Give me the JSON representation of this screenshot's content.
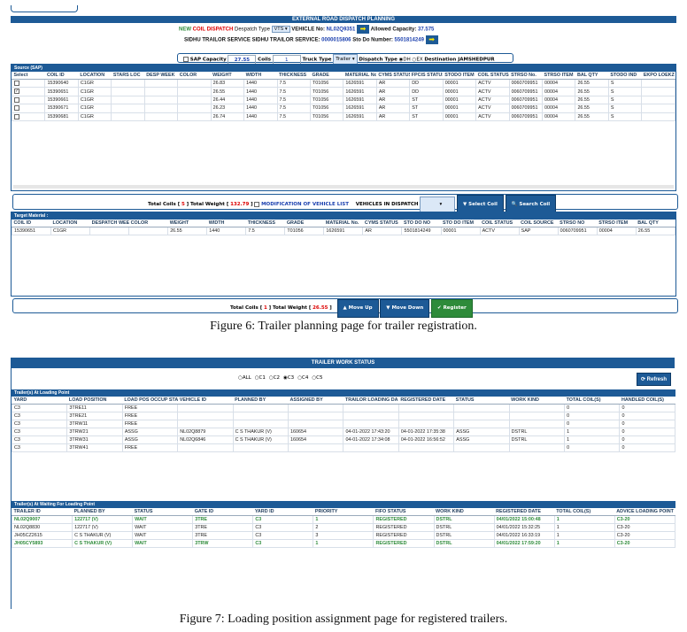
{
  "fig6": {
    "title": "EXTERNAL ROAD DISPATCH PLANNING",
    "new_label": "NEW",
    "coil_dispatch_label": "COIL DISPATCH",
    "despatch_type_label": "Despatch Type",
    "despatch_type_value": "VTS",
    "vehicle_no_label": "VEHICLE No:",
    "vehicle_no_value": "NL02Q9351",
    "allowed_capacity_label": "Allowed Capacity:",
    "allowed_capacity_value": "37.575",
    "service_label": "SIDHU TRAILOR SERVICE SIDHU TRAILOR SERVICE:",
    "service_value": "0000015806",
    "sto_do_label": "Sto Do Number:",
    "sto_do_value": "5501814249",
    "sap_capacity_label": "SAP Capacity",
    "sap_capacity_value": "27.55",
    "coils_label": "Coils",
    "coils_value": "1",
    "truck_type_label": "Truck Type",
    "truck_type_value": "Trailer",
    "dispatch_type_label": "Dispatch Type",
    "dh_label": "DH",
    "ex_label": "EX",
    "destination_label": "Destination JAMSHEDPUR",
    "source_label": "Source (SAP)",
    "source_columns": [
      "Select",
      "COIL ID",
      "LOCATION",
      "STARS LOC",
      "DESP WEEK",
      "COLOR",
      "WEIGHT",
      "WIDTH",
      "THICKNESS",
      "GRADE",
      "MATERIAL No.",
      "CYMS STATUS",
      "FPCIS STATUS",
      "STODO ITEM",
      "COIL STATUS",
      "STRSO No.",
      "STRSO ITEM",
      "BAL QTY",
      "STODO IND",
      "EKPO LOEKZ"
    ],
    "source_rows": [
      {
        "checked": "",
        "cells": [
          "15390640",
          "C1GR",
          "",
          "",
          "",
          "26.83",
          "1440",
          "7.5",
          "T01056",
          "1626591",
          "AR",
          "DD",
          "00001",
          "ACTV",
          "0060709951",
          "00004",
          "26.55",
          "S",
          ""
        ]
      },
      {
        "checked": "✓",
        "cells": [
          "15390651",
          "C1GR",
          "",
          "",
          "",
          "26.55",
          "1440",
          "7.5",
          "T01056",
          "1626591",
          "AR",
          "DD",
          "00001",
          "ACTV",
          "0060709951",
          "00004",
          "26.55",
          "S",
          ""
        ]
      },
      {
        "checked": "",
        "cells": [
          "15390661",
          "C1GR",
          "",
          "",
          "",
          "26.44",
          "1440",
          "7.5",
          "T01056",
          "1626591",
          "AR",
          "ST",
          "00001",
          "ACTV",
          "0060709951",
          "00004",
          "26.55",
          "S",
          ""
        ]
      },
      {
        "checked": "",
        "cells": [
          "15390671",
          "C1GR",
          "",
          "",
          "",
          "26.23",
          "1440",
          "7.5",
          "T01056",
          "1626591",
          "AR",
          "ST",
          "00001",
          "ACTV",
          "0060709951",
          "00004",
          "26.55",
          "S",
          ""
        ]
      },
      {
        "checked": "",
        "cells": [
          "15390681",
          "C1GR",
          "",
          "",
          "",
          "26.74",
          "1440",
          "7.5",
          "T01056",
          "1626591",
          "AR",
          "ST",
          "00001",
          "ACTV",
          "0060709951",
          "00004",
          "26.55",
          "S",
          ""
        ]
      }
    ],
    "total_coils_label": "Total Coils [",
    "total_coils_value": "5",
    "total_weight_label": "] Total Weight [",
    "total_weight_value": "132.79",
    "close_bracket": "]",
    "modification_label": "MODIFICATION OF VEHICLE LIST",
    "vehicles_label": "VEHICLES IN DISPATCH",
    "select_coil_btn": "Select Coil",
    "search_coil_btn": "Search Coil",
    "target_label": "Target Material :",
    "target_columns": [
      "COIL ID",
      "LOCATION",
      "DESPATCH WEEK",
      "COLOR",
      "WEIGHT",
      "WIDTH",
      "THICKNESS",
      "GRADE",
      "MATERIAL No.",
      "CYMS STATUS",
      "STO DO NO",
      "STO DO ITEM",
      "COIL STATUS",
      "COIL SOURCE",
      "STRSO NO",
      "STRSO ITEM",
      "BAL QTY"
    ],
    "target_rows": [
      [
        "15390651",
        "C1GR",
        "",
        "",
        "26.55",
        "1440",
        "7.5",
        "T01056",
        "1626591",
        "AR",
        "5501814249",
        "00001",
        "ACTV",
        "SAP",
        "0060709951",
        "00004",
        "26.55"
      ]
    ],
    "bottom_total_coils_value": "1",
    "bottom_total_weight_value": "26.55",
    "move_up_btn": "Move Up",
    "move_down_btn": "Move Down",
    "register_btn": "Register",
    "caption": "Figure 6: Trailer planning page for trailer registration."
  },
  "fig7": {
    "title": "TRAILER WORK STATUS",
    "radios": [
      "ALL",
      "C1",
      "C2",
      "C3",
      "C4",
      "C5"
    ],
    "selected_radio": "C3",
    "refresh_btn": "Refresh",
    "loading_label": "Trailer(s) At Loading Point",
    "loading_columns": [
      "YARD",
      "LOAD POSITION",
      "LOAD POS OCCUP STA",
      "VEHICLE ID",
      "PLANNED BY",
      "ASSIGNED BY",
      "TRAILOR LOADING DA",
      "REGISTERED DATE",
      "STATUS",
      "WORK KIND",
      "TOTAL COIL(S)",
      "HANDLED COIL(S)"
    ],
    "loading_rows": [
      [
        "C3",
        "3TRE11",
        "FREE",
        "",
        "",
        "",
        "",
        "",
        "",
        "",
        "0",
        "0"
      ],
      [
        "C3",
        "3TRE21",
        "FREE",
        "",
        "",
        "",
        "",
        "",
        "",
        "",
        "0",
        "0"
      ],
      [
        "C3",
        "3TRW11",
        "FREE",
        "",
        "",
        "",
        "",
        "",
        "",
        "",
        "0",
        "0"
      ],
      [
        "C3",
        "3TRW21",
        "ASSG",
        "NL02Q8879",
        "C S THAKUR (V)",
        "160654",
        "04-01-2022 17:43:20",
        "04-01-2022 17:35:38",
        "ASSG",
        "DSTRL",
        "1",
        "0"
      ],
      [
        "C3",
        "3TRW31",
        "ASSG",
        "NL02Q6846",
        "C S THAKUR (V)",
        "160654",
        "04-01-2022 17:34:08",
        "04-01-2022 16:56:52",
        "ASSG",
        "DSTRL",
        "1",
        "0"
      ],
      [
        "C3",
        "3TRW41",
        "FREE",
        "",
        "",
        "",
        "",
        "",
        "",
        "",
        "0",
        "0"
      ]
    ],
    "waiting_label": "Trailer(s) At Waiting For Loading Point",
    "waiting_columns": [
      "TRAILER ID",
      "PLANNED BY",
      "STATUS",
      "GATE ID",
      "YARD ID",
      "PRIORITY",
      "FIFO STATUS",
      "WORK KIND",
      "REGISTERED DATE",
      "TOTAL COIL(S)",
      "ADVICE LOADING POINT"
    ],
    "waiting_rows": [
      {
        "green": true,
        "cells": [
          "NL02Q9007",
          "122717 (V)",
          "WAIT",
          "3TRE",
          "C3",
          "1",
          "REGISTERED",
          "DSTRL",
          "04/01/2022 15:00:48",
          "1",
          "C3-20"
        ]
      },
      {
        "green": false,
        "cells": [
          "NL02Q8830",
          "122717 (V)",
          "WAIT",
          "3TRE",
          "C3",
          "2",
          "REGISTERED",
          "DSTRL",
          "04/01/2022 15:32:25",
          "1",
          "C3-20"
        ]
      },
      {
        "green": false,
        "cells": [
          "JH05CZ2615",
          "C S THAKUR (V)",
          "WAIT",
          "3TRE",
          "C3",
          "3",
          "REGISTERED",
          "DSTRL",
          "04/01/2022 16:33:19",
          "1",
          "C3-20"
        ]
      },
      {
        "green": true,
        "cells": [
          "JH05CY5893",
          "C S THAKUR (V)",
          "WAIT",
          "3TRW",
          "C3",
          "1",
          "REGISTERED",
          "DSTRL",
          "04/01/2022 17:59:20",
          "1",
          "C3-20"
        ]
      }
    ],
    "caption": "Figure 7: Loading position assignment page for registered trailers."
  }
}
